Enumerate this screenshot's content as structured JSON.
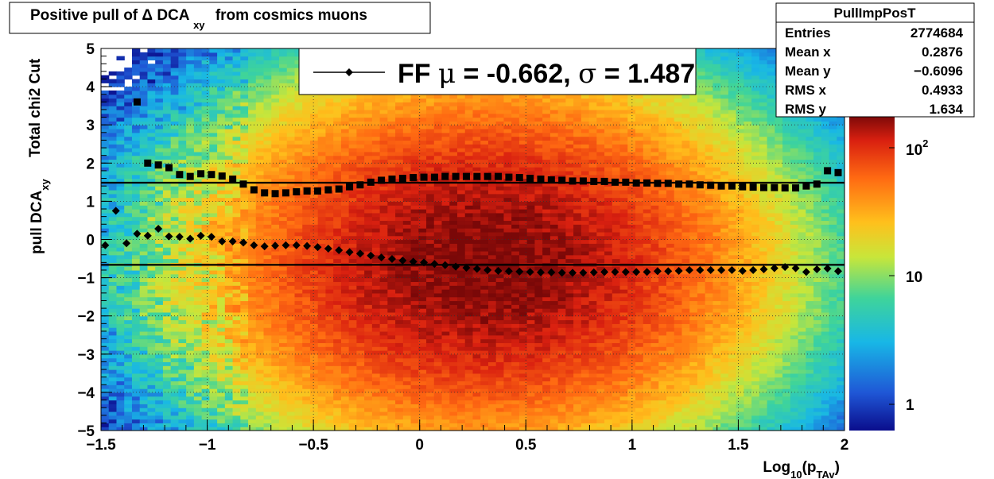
{
  "title": {
    "main": "Positive pull of Δ DCA",
    "sub": "xy",
    "tail": "from cosmics muons"
  },
  "stats_box": {
    "name": "PullImpPosT",
    "rows": [
      {
        "label": "Entries",
        "value": "2774684"
      },
      {
        "label": "Mean x",
        "value": "0.2876"
      },
      {
        "label": "Mean y",
        "value": "−0.6096"
      },
      {
        "label": "RMS x",
        "value": "0.4933"
      },
      {
        "label": "RMS y",
        "value": "1.634"
      }
    ]
  },
  "legend": {
    "text_prefix": "FF ",
    "mu_symbol": "μ",
    "mu_text": " = -0.662, ",
    "sigma_symbol": "σ",
    "sigma_text": " =   1.487"
  },
  "axes": {
    "x": {
      "label_main": "Log",
      "label_sub1": "10",
      "label_mid": "(p",
      "label_sub2": "TAv",
      "label_end": ")",
      "ticks": [
        -1.5,
        -1,
        -0.5,
        0,
        0.5,
        1,
        1.5,
        2
      ],
      "tick_labels": [
        "−1.5",
        "−1",
        "−0.5",
        "0",
        "0.5",
        "1",
        "1.5",
        "2"
      ]
    },
    "y": {
      "label_line1": "Total chi2 Cut",
      "label_main": "pull DCA",
      "label_sub": "xy",
      "ticks": [
        -5,
        -4,
        -3,
        -2,
        -1,
        0,
        1,
        2,
        3,
        4,
        5
      ],
      "tick_labels": [
        "−5",
        "−4",
        "−3",
        "−2",
        "−1",
        "0",
        "1",
        "2",
        "3",
        "4",
        "5"
      ]
    },
    "z": {
      "labels": [
        "1",
        "10",
        "10"
      ],
      "sup": "2"
    }
  },
  "chart_data": {
    "type": "heatmap",
    "title": "Positive pull of Δ DCA xy from cosmics muons",
    "xlabel": "Log10(pTAv)",
    "ylabel": "pull DCAxy",
    "xlim": [
      -1.5,
      2
    ],
    "ylim": [
      -5,
      5
    ],
    "zlim": [
      0.6,
      400
    ],
    "z_scale": "log",
    "grid": true,
    "legend_position": "top-center",
    "density_peak": {
      "x": 0.3,
      "y": -0.6
    },
    "fit_lines": {
      "mean": -0.662,
      "sigma": 1.487
    },
    "series": [
      {
        "name": "mean",
        "x": [
          -1.48,
          -1.43,
          -1.38,
          -1.33,
          -1.28,
          -1.23,
          -1.18,
          -1.13,
          -1.08,
          -1.03,
          -0.98,
          -0.93,
          -0.88,
          -0.83,
          -0.78,
          -0.73,
          -0.68,
          -0.63,
          -0.58,
          -0.53,
          -0.48,
          -0.43,
          -0.38,
          -0.33,
          -0.28,
          -0.23,
          -0.18,
          -0.13,
          -0.08,
          -0.03,
          0.02,
          0.07,
          0.12,
          0.17,
          0.22,
          0.27,
          0.32,
          0.37,
          0.42,
          0.47,
          0.52,
          0.57,
          0.62,
          0.67,
          0.72,
          0.77,
          0.82,
          0.87,
          0.92,
          0.97,
          1.02,
          1.07,
          1.12,
          1.17,
          1.22,
          1.27,
          1.32,
          1.37,
          1.42,
          1.47,
          1.52,
          1.57,
          1.62,
          1.67,
          1.72,
          1.77,
          1.82,
          1.87,
          1.92,
          1.97
        ],
        "y": [
          -0.15,
          0.75,
          -0.1,
          0.15,
          0.1,
          0.28,
          0.08,
          0.07,
          0.02,
          0.1,
          0.07,
          -0.05,
          -0.05,
          -0.08,
          -0.15,
          -0.18,
          -0.16,
          -0.15,
          -0.15,
          -0.17,
          -0.2,
          -0.24,
          -0.28,
          -0.33,
          -0.37,
          -0.42,
          -0.47,
          -0.51,
          -0.55,
          -0.58,
          -0.6,
          -0.64,
          -0.67,
          -0.71,
          -0.74,
          -0.77,
          -0.8,
          -0.82,
          -0.83,
          -0.84,
          -0.85,
          -0.86,
          -0.86,
          -0.87,
          -0.87,
          -0.87,
          -0.86,
          -0.85,
          -0.85,
          -0.85,
          -0.85,
          -0.85,
          -0.83,
          -0.83,
          -0.82,
          -0.8,
          -0.8,
          -0.8,
          -0.8,
          -0.8,
          -0.82,
          -0.8,
          -0.78,
          -0.75,
          -0.72,
          -0.75,
          -0.85,
          -0.78,
          -0.76,
          -0.83
        ]
      },
      {
        "name": "sigma",
        "x": [
          -1.33,
          -1.28,
          -1.23,
          -1.18,
          -1.13,
          -1.08,
          -1.03,
          -0.98,
          -0.93,
          -0.88,
          -0.83,
          -0.78,
          -0.73,
          -0.68,
          -0.63,
          -0.58,
          -0.53,
          -0.48,
          -0.43,
          -0.38,
          -0.33,
          -0.28,
          -0.23,
          -0.18,
          -0.13,
          -0.08,
          -0.03,
          0.02,
          0.07,
          0.12,
          0.17,
          0.22,
          0.27,
          0.32,
          0.37,
          0.42,
          0.47,
          0.52,
          0.57,
          0.62,
          0.67,
          0.72,
          0.77,
          0.82,
          0.87,
          0.92,
          0.97,
          1.02,
          1.07,
          1.12,
          1.17,
          1.22,
          1.27,
          1.32,
          1.37,
          1.42,
          1.47,
          1.52,
          1.57,
          1.62,
          1.67,
          1.72,
          1.77,
          1.82,
          1.87,
          1.92,
          1.97
        ],
        "y": [
          3.6,
          2.0,
          1.95,
          1.88,
          1.7,
          1.65,
          1.72,
          1.7,
          1.66,
          1.58,
          1.45,
          1.3,
          1.22,
          1.2,
          1.22,
          1.25,
          1.27,
          1.27,
          1.3,
          1.32,
          1.38,
          1.43,
          1.5,
          1.55,
          1.58,
          1.6,
          1.62,
          1.63,
          1.63,
          1.65,
          1.65,
          1.65,
          1.65,
          1.65,
          1.65,
          1.63,
          1.62,
          1.6,
          1.58,
          1.56,
          1.55,
          1.53,
          1.53,
          1.52,
          1.52,
          1.5,
          1.5,
          1.48,
          1.48,
          1.47,
          1.47,
          1.45,
          1.45,
          1.43,
          1.42,
          1.4,
          1.4,
          1.38,
          1.37,
          1.36,
          1.36,
          1.35,
          1.35,
          1.4,
          1.45,
          1.8,
          1.75
        ]
      }
    ]
  }
}
